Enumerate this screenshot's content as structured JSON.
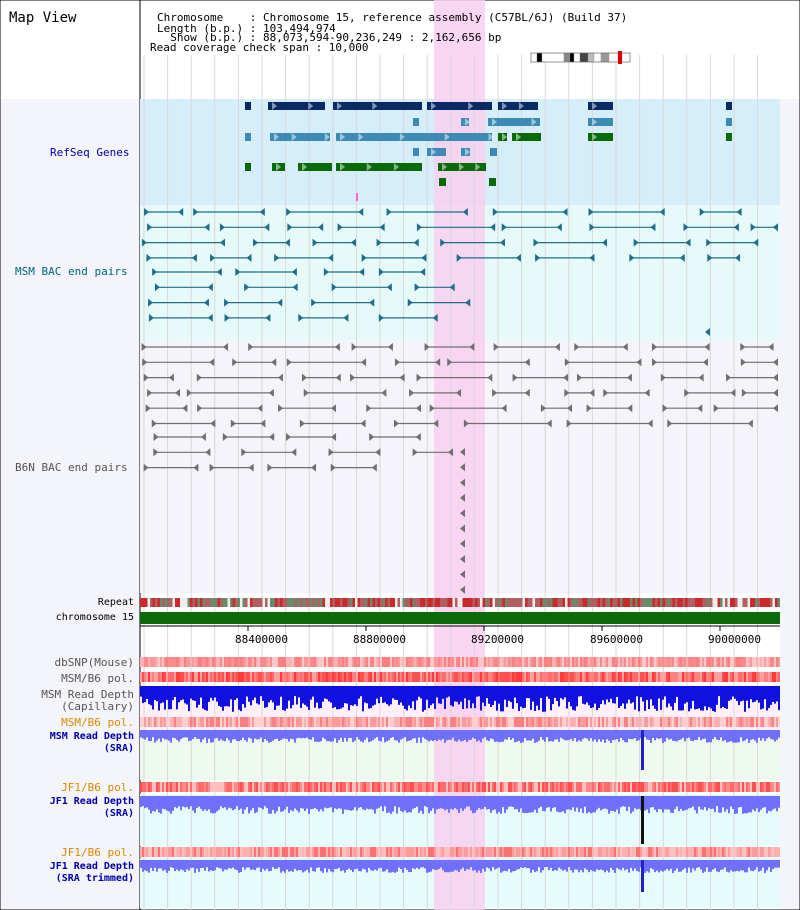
{
  "view": {
    "title": "Map View",
    "info": {
      "chromosome_line": "Chromosome    : Chromosome 15, reference assembly (C57BL/6J) (Build 37)",
      "length_line": "Length (b.p.) : 103,494,974",
      "show_line": "  Show (b.p.) : 88,073,594-90,236,249 : 2,162,656 bp",
      "coverage_line": "Read coverage check span : 10,000"
    }
  },
  "tracks": {
    "refseq": "RefSeq Genes",
    "msm_bac": "MSM BAC end pairs",
    "b6n_bac": "B6N BAC end pairs",
    "repeat": "Repeat",
    "chromosome": "chromosome 15",
    "dbsnp": "dbSNP(Mouse)",
    "msm_b6_pol_1": "MSM/B6 pol.",
    "msm_read_depth_cap_1": "MSM Read Depth",
    "msm_read_depth_cap_2": "(Capillary)",
    "msm_b6_pol_2": "MSM/B6 pol.",
    "msm_read_depth_sra_1": "MSM Read Depth",
    "msm_read_depth_sra_2": "(SRA)",
    "jf1_b6_pol": "JF1/B6 pol.",
    "jf1_read_depth_1": "JF1 Read Depth",
    "jf1_read_depth_2": "(SRA)",
    "jf1_b6_pol_2": "JF1/B6 pol.",
    "jf1_read_depth_trim_1": "JF1 Read Depth",
    "jf1_read_depth_trim_2": "(SRA trimmed)"
  },
  "axis": {
    "ticks": [
      "88400000",
      "88800000",
      "89200000",
      "89600000",
      "90000000"
    ]
  },
  "colors": {
    "refseq_bg": "#d6eefa",
    "bac_bg": "#e6fafa",
    "highlight": "#f8d0f0",
    "gene_dark": "#0a2a66",
    "gene_mid": "#3d8ab5",
    "gene_green": "#0a6a0a",
    "msm_bac": "#1e6e8c",
    "b6n_bac": "#707070",
    "chrom_green": "#0b6b0b",
    "depth_blue": "#1010e0",
    "depth_light": "#7070ff",
    "label_blue": "#0000aa",
    "label_teal": "#00667a",
    "label_gray": "#555555",
    "label_orange": "#e08800"
  }
}
